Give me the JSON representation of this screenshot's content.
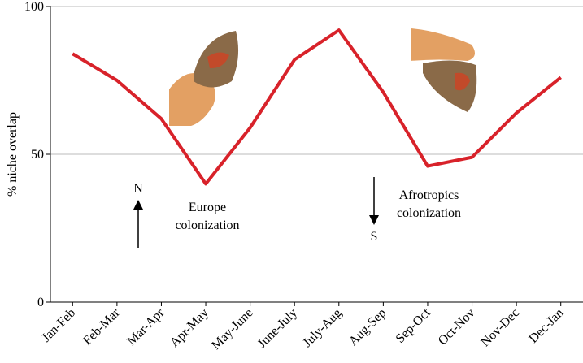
{
  "chart_data": {
    "type": "line",
    "y_label": "% niche overlap",
    "categories": [
      "Jan-Feb",
      "Feb-Mar",
      "Mar-Apr",
      "Apr-May",
      "May-June",
      "June-July",
      "July-Aug",
      "Aug-Sep",
      "Sep-Oct",
      "Oct-Nov",
      "Nov-Dec",
      "Dec-Jan"
    ],
    "values": [
      84,
      75,
      62,
      40,
      59,
      82,
      92,
      71,
      46,
      49,
      64,
      76
    ],
    "color": "#d8222a",
    "ylim": [
      0,
      100
    ],
    "yticks": [
      0,
      50,
      100
    ],
    "grid": true,
    "annotations": [
      "N",
      "Europe colonization",
      "Afrotropics colonization",
      "S"
    ]
  }
}
